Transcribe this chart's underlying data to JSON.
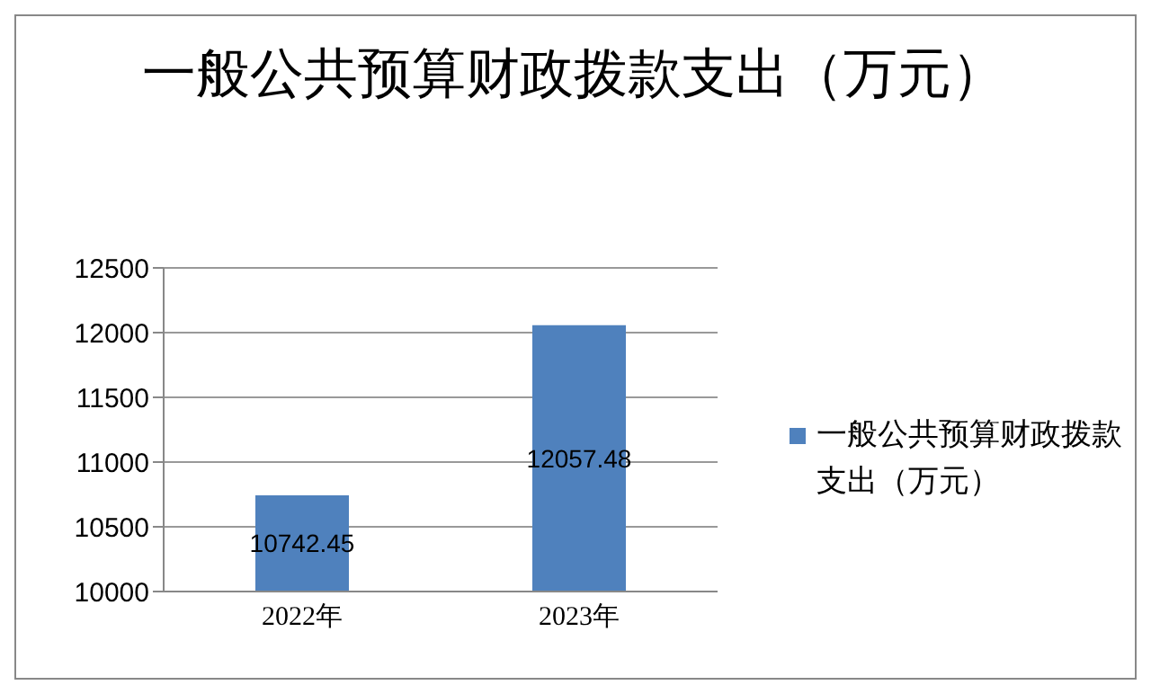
{
  "chart_data": {
    "type": "bar",
    "title": "一般公共预算财政拨款支出（万元）",
    "categories": [
      "2022年",
      "2023年"
    ],
    "series": [
      {
        "name": "一般公共预算财政拨款支出（万元）",
        "color": "#4f81bd",
        "values": [
          10742.45,
          12057.48
        ]
      }
    ],
    "ylim": [
      10000,
      12500
    ],
    "yticks": [
      10000,
      10500,
      11000,
      11500,
      12000,
      12500
    ],
    "grid": "y",
    "legend": "right",
    "data_labels": true
  }
}
